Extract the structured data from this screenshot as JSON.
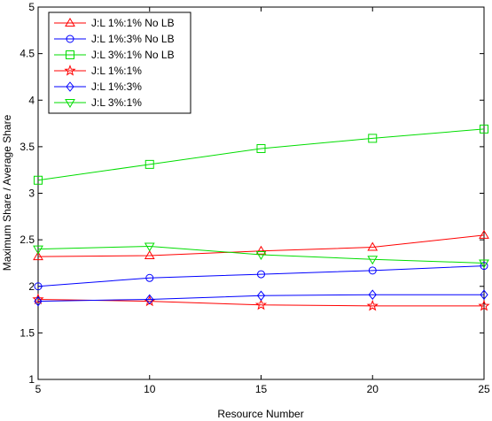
{
  "chart_data": {
    "type": "line",
    "xlabel": "Resource Number",
    "ylabel": "Maximum Share / Average Share",
    "xlim": [
      5,
      25
    ],
    "ylim": [
      1,
      5
    ],
    "xticks": [
      5,
      10,
      15,
      20,
      25
    ],
    "yticks": [
      1,
      1.5,
      2,
      2.5,
      3,
      3.5,
      4,
      4.5,
      5
    ],
    "ytick_labels": [
      "1",
      "1.5",
      "2",
      "2.5",
      "3",
      "3.5",
      "4",
      "4.5",
      "5"
    ],
    "x": [
      5,
      10,
      15,
      20,
      25
    ],
    "grid": false,
    "legend_position": "top-left",
    "series": [
      {
        "name": "J:L 1%:1% No LB",
        "color": "#ff0000",
        "marker": "triangle-up",
        "values": [
          2.32,
          2.33,
          2.38,
          2.42,
          2.55
        ]
      },
      {
        "name": "J:L 1%:3% No LB",
        "color": "#0000ff",
        "marker": "circle",
        "values": [
          2.0,
          2.09,
          2.13,
          2.17,
          2.22
        ]
      },
      {
        "name": "J:L 3%:1% No LB",
        "color": "#00dd00",
        "marker": "square",
        "values": [
          3.14,
          3.31,
          3.48,
          3.59,
          3.69
        ]
      },
      {
        "name": "J:L 1%:1%",
        "color": "#ff0000",
        "marker": "star",
        "values": [
          1.86,
          1.84,
          1.8,
          1.79,
          1.79
        ]
      },
      {
        "name": "J:L 1%:3%",
        "color": "#0000ff",
        "marker": "diamond",
        "values": [
          1.84,
          1.86,
          1.9,
          1.91,
          1.91
        ]
      },
      {
        "name": "J:L 3%:1%",
        "color": "#00dd00",
        "marker": "triangle-down",
        "values": [
          2.4,
          2.43,
          2.34,
          2.29,
          2.25
        ]
      }
    ]
  }
}
